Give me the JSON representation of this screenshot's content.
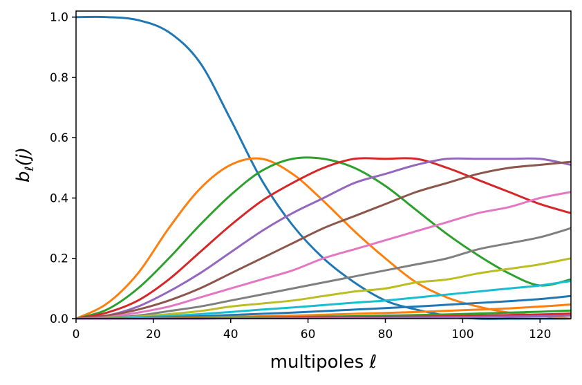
{
  "chart_data": {
    "type": "line",
    "xlabel": "multipoles ℓ",
    "ylabel_main": "b",
    "ylabel_sub": "ℓ",
    "ylabel_tail": "(j)",
    "xlim": [
      0,
      128
    ],
    "ylim": [
      0,
      1.02
    ],
    "x_ticks": [
      0,
      20,
      40,
      60,
      80,
      100,
      120
    ],
    "x_tick_labels": [
      "0",
      "20",
      "40",
      "60",
      "80",
      "100",
      "120"
    ],
    "y_ticks": [
      0.0,
      0.2,
      0.4,
      0.6,
      0.8,
      1.0
    ],
    "y_tick_labels": [
      "0.0",
      "0.2",
      "0.4",
      "0.6",
      "0.8",
      "1.0"
    ],
    "grid": false,
    "x": [
      0,
      8,
      16,
      24,
      32,
      40,
      48,
      56,
      64,
      72,
      80,
      88,
      96,
      104,
      112,
      120,
      128
    ],
    "series": [
      {
        "color": "#1f77b4",
        "values": [
          1.0,
          1.0,
          0.99,
          0.95,
          0.85,
          0.66,
          0.46,
          0.31,
          0.2,
          0.12,
          0.06,
          0.03,
          0.01,
          0.0,
          0.0,
          0.0,
          0.0
        ]
      },
      {
        "color": "#ff7f0e",
        "values": [
          0.0,
          0.05,
          0.15,
          0.3,
          0.43,
          0.51,
          0.53,
          0.48,
          0.39,
          0.29,
          0.2,
          0.12,
          0.07,
          0.04,
          0.02,
          0.01,
          0.0
        ]
      },
      {
        "color": "#2ca02c",
        "values": [
          0.0,
          0.03,
          0.1,
          0.2,
          0.31,
          0.41,
          0.49,
          0.53,
          0.53,
          0.5,
          0.44,
          0.36,
          0.28,
          0.21,
          0.15,
          0.11,
          0.13
        ]
      },
      {
        "color": "#d62728",
        "values": [
          0.0,
          0.02,
          0.06,
          0.13,
          0.22,
          0.31,
          0.39,
          0.45,
          0.5,
          0.53,
          0.53,
          0.53,
          0.5,
          0.46,
          0.42,
          0.38,
          0.35
        ]
      },
      {
        "color": "#9467bd",
        "values": [
          0.0,
          0.01,
          0.04,
          0.09,
          0.15,
          0.22,
          0.29,
          0.35,
          0.4,
          0.45,
          0.48,
          0.51,
          0.53,
          0.53,
          0.53,
          0.53,
          0.51
        ]
      },
      {
        "color": "#8c564b",
        "values": [
          0.0,
          0.01,
          0.03,
          0.06,
          0.1,
          0.15,
          0.2,
          0.25,
          0.3,
          0.34,
          0.38,
          0.42,
          0.45,
          0.48,
          0.5,
          0.51,
          0.52
        ]
      },
      {
        "color": "#e377c2",
        "values": [
          0.0,
          0.005,
          0.02,
          0.04,
          0.07,
          0.1,
          0.13,
          0.16,
          0.2,
          0.23,
          0.26,
          0.29,
          0.32,
          0.35,
          0.37,
          0.4,
          0.42
        ]
      },
      {
        "color": "#7f7f7f",
        "values": [
          0.0,
          0.003,
          0.01,
          0.025,
          0.04,
          0.06,
          0.08,
          0.1,
          0.12,
          0.14,
          0.16,
          0.18,
          0.2,
          0.23,
          0.25,
          0.27,
          0.3
        ]
      },
      {
        "color": "#bcbd22",
        "values": [
          0.0,
          0.002,
          0.007,
          0.015,
          0.025,
          0.04,
          0.05,
          0.06,
          0.075,
          0.09,
          0.1,
          0.12,
          0.13,
          0.15,
          0.165,
          0.18,
          0.2
        ]
      },
      {
        "color": "#17becf",
        "values": [
          0.0,
          0.001,
          0.004,
          0.009,
          0.015,
          0.022,
          0.03,
          0.037,
          0.045,
          0.053,
          0.06,
          0.07,
          0.08,
          0.09,
          0.1,
          0.11,
          0.125
        ]
      },
      {
        "color": "#1f77b4",
        "values": [
          0.0,
          0.0,
          0.002,
          0.005,
          0.008,
          0.012,
          0.016,
          0.02,
          0.025,
          0.03,
          0.035,
          0.04,
          0.046,
          0.052,
          0.058,
          0.065,
          0.075
        ]
      },
      {
        "color": "#ff7f0e",
        "values": [
          0.0,
          0.0,
          0.001,
          0.002,
          0.004,
          0.006,
          0.008,
          0.01,
          0.013,
          0.016,
          0.019,
          0.022,
          0.026,
          0.03,
          0.034,
          0.04,
          0.047
        ]
      },
      {
        "color": "#2ca02c",
        "values": [
          0.0,
          0.0,
          0.0,
          0.001,
          0.002,
          0.003,
          0.004,
          0.005,
          0.007,
          0.008,
          0.01,
          0.012,
          0.014,
          0.017,
          0.02,
          0.023,
          0.027
        ]
      },
      {
        "color": "#d62728",
        "values": [
          0.0,
          0.0,
          0.0,
          0.0,
          0.001,
          0.0015,
          0.002,
          0.003,
          0.004,
          0.005,
          0.006,
          0.007,
          0.008,
          0.01,
          0.012,
          0.014,
          0.017
        ]
      },
      {
        "color": "#9467bd",
        "values": [
          0.0,
          0.0,
          0.0,
          0.0,
          0.0,
          0.001,
          0.001,
          0.0015,
          0.002,
          0.0025,
          0.003,
          0.004,
          0.005,
          0.006,
          0.007,
          0.008,
          0.01
        ]
      }
    ]
  }
}
